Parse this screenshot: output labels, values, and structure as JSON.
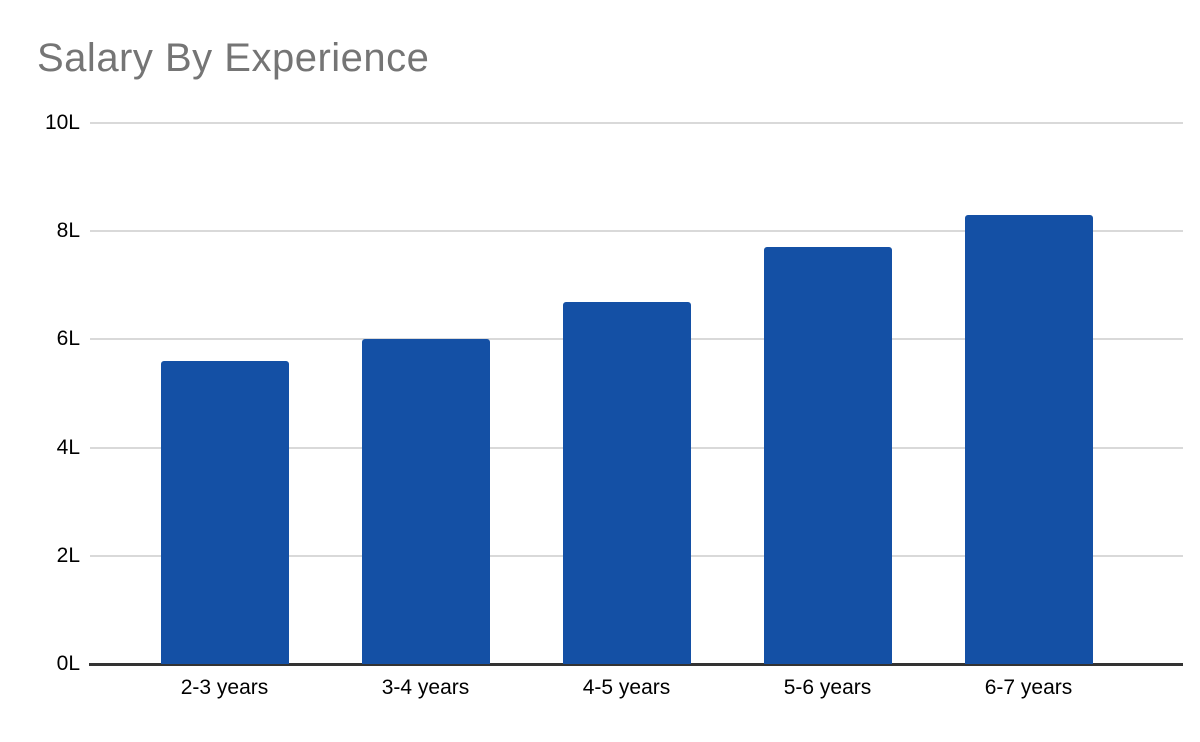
{
  "colors": {
    "bar": "#1450a5",
    "title": "#757575",
    "gridline": "#d9d9d9",
    "axis_line": "#333333",
    "label": "#000000",
    "background": "#ffffff"
  },
  "chart_data": {
    "type": "bar",
    "title": "Salary By Experience",
    "categories": [
      "2-3 years",
      "3-4 years",
      "4-5 years",
      "5-6 years",
      "6-7 years"
    ],
    "values": [
      5.6,
      6.0,
      6.7,
      7.7,
      8.3
    ],
    "unit": "L",
    "xlabel": "",
    "ylabel": "",
    "ylim": [
      0,
      10
    ],
    "y_ticks": [
      {
        "value": 0,
        "label": "0L"
      },
      {
        "value": 2,
        "label": "2L"
      },
      {
        "value": 4,
        "label": "4L"
      },
      {
        "value": 6,
        "label": "6L"
      },
      {
        "value": 8,
        "label": "8L"
      },
      {
        "value": 10,
        "label": "10L"
      }
    ],
    "grid": true,
    "legend": "none"
  }
}
